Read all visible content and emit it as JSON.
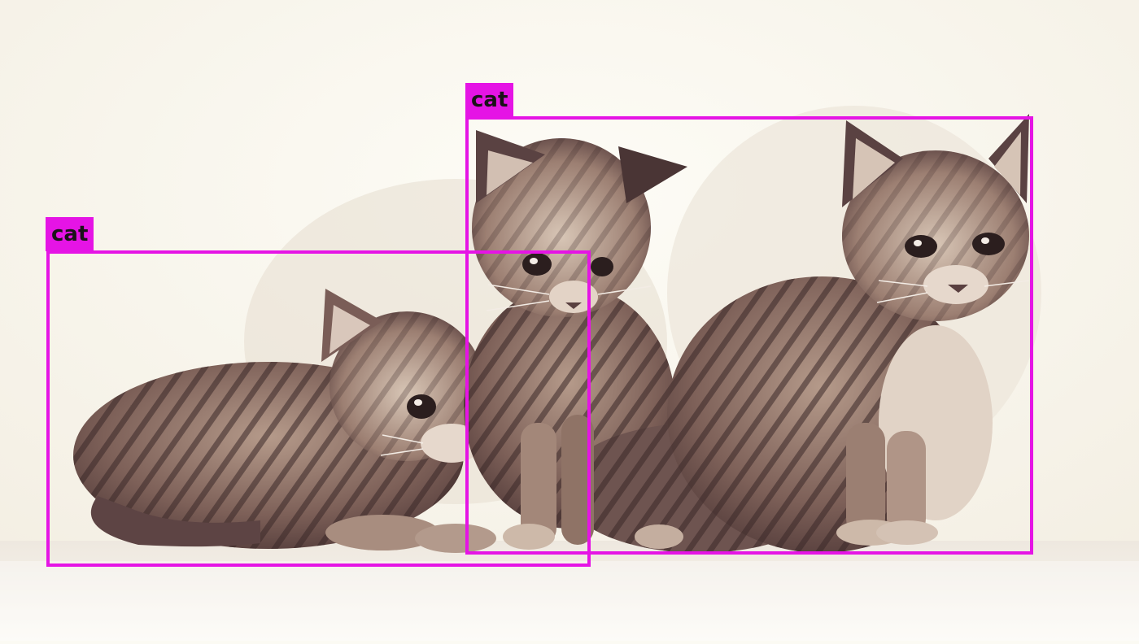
{
  "scene": {
    "description_icon": "photo",
    "colors": {
      "background": "#fbfaf3",
      "floor": "#f5f1ea",
      "fur_dark": "#3d2b2b",
      "fur_mid": "#8c7064",
      "fur_light": "#cdb9a9",
      "box": "#e514e5"
    }
  },
  "detections": [
    {
      "label": "cat"
    },
    {
      "label": "cat"
    }
  ]
}
